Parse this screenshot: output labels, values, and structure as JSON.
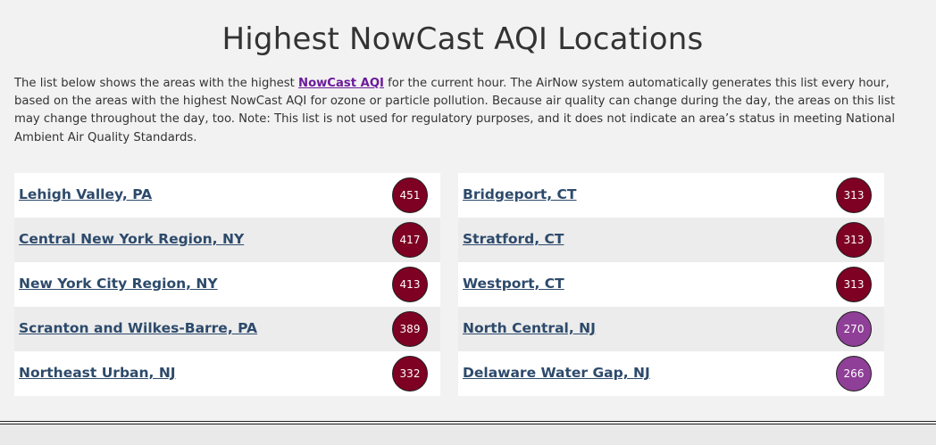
{
  "page": {
    "title": "Highest NowCast AQI Locations",
    "intro_before_link": "The list below shows the areas with the highest ",
    "intro_link": "NowCast AQI",
    "intro_after_link": " for the current hour. The AirNow system automatically generates this list every hour, based on the areas with the highest NowCast AQI for ozone or particle pollution. Because air quality can change during the day, the areas on this list may change throughout the day, too. Note: This list is not used for regulatory purposes, and it does not indicate an area’s status in meeting National Ambient Air Quality Standards."
  },
  "colors": {
    "hazardous": "#7e0023",
    "very_unhealthy": "#8f3f97",
    "link": "#2d4a6b"
  },
  "locations": [
    {
      "name": "Lehigh Valley, PA",
      "aqi": "451",
      "color": "#7e0023"
    },
    {
      "name": "Central New York Region, NY",
      "aqi": "417",
      "color": "#7e0023"
    },
    {
      "name": "New York City Region, NY",
      "aqi": "413",
      "color": "#7e0023"
    },
    {
      "name": "Scranton and Wilkes-Barre, PA",
      "aqi": "389",
      "color": "#7e0023"
    },
    {
      "name": "Northeast Urban, NJ",
      "aqi": "332",
      "color": "#7e0023"
    },
    {
      "name": "Bridgeport, CT",
      "aqi": "313",
      "color": "#7e0023"
    },
    {
      "name": "Stratford, CT",
      "aqi": "313",
      "color": "#7e0023"
    },
    {
      "name": "Westport, CT",
      "aqi": "313",
      "color": "#7e0023"
    },
    {
      "name": "North Central, NJ",
      "aqi": "270",
      "color": "#8f3f97"
    },
    {
      "name": "Delaware Water Gap, NJ",
      "aqi": "266",
      "color": "#8f3f97"
    }
  ]
}
